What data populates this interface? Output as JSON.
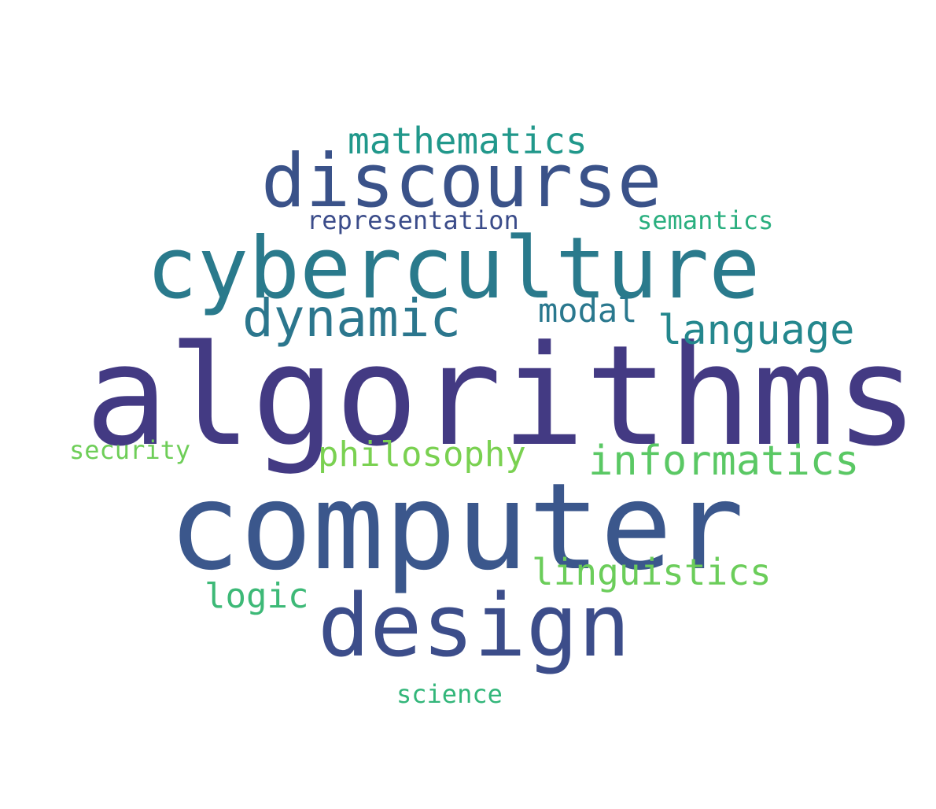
{
  "words": {
    "algorithms": {
      "text": "algorithms",
      "color": "#433a83"
    },
    "computer": {
      "text": "computer",
      "color": "#3b578c"
    },
    "cyberculture": {
      "text": "cyberculture",
      "color": "#2a7a8c"
    },
    "discourse": {
      "text": "discourse",
      "color": "#3a5289"
    },
    "design": {
      "text": "design",
      "color": "#3c4d8a"
    },
    "dynamic": {
      "text": "dynamic",
      "color": "#2b768d"
    },
    "language": {
      "text": "language",
      "color": "#24878d"
    },
    "informatics": {
      "text": "informatics",
      "color": "#5ac864"
    },
    "philosophy": {
      "text": "philosophy",
      "color": "#7ad151"
    },
    "linguistics": {
      "text": "linguistics",
      "color": "#6bcd5a"
    },
    "logic": {
      "text": "logic",
      "color": "#3db977"
    },
    "mathematics": {
      "text": "mathematics",
      "color": "#21988b"
    },
    "modal": {
      "text": "modal",
      "color": "#2a788e"
    },
    "representation": {
      "text": "representation",
      "color": "#3b4c8a"
    },
    "semantics": {
      "text": "semantics",
      "color": "#2aaf7f"
    },
    "security": {
      "text": "security",
      "color": "#6ece58"
    },
    "science": {
      "text": "science",
      "color": "#33b67a"
    }
  }
}
